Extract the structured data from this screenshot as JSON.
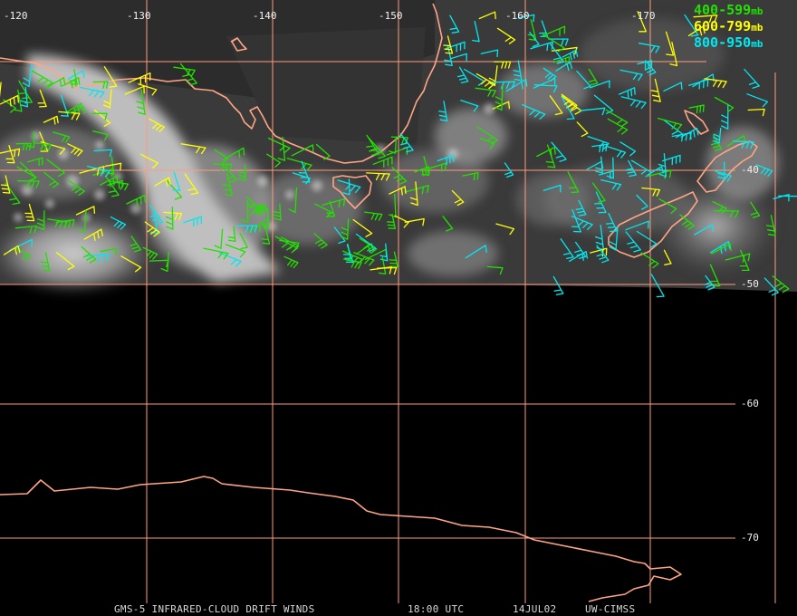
{
  "longitude_labels": [
    "-120",
    "-130",
    "-140",
    "-150",
    "-160",
    "-170"
  ],
  "latitude_labels": [
    "-40",
    "-50",
    "-60",
    "-70"
  ],
  "legend": [
    {
      "range": "400-599",
      "unit": "mb",
      "color": "#22e000"
    },
    {
      "range": "600-799",
      "unit": "mb",
      "color": "#ffff00"
    },
    {
      "range": "800-950",
      "unit": "mb",
      "color": "#00e8f0"
    }
  ],
  "footer": {
    "product": "GMS-5 INFRARED-CLOUD DRIFT WINDS",
    "time": "18:00 UTC",
    "date": "14JUL02",
    "source": "UW-CIMSS"
  },
  "colors": {
    "coastline": "#ffa585",
    "grid": "#ff9c7c",
    "background": "#000000"
  }
}
